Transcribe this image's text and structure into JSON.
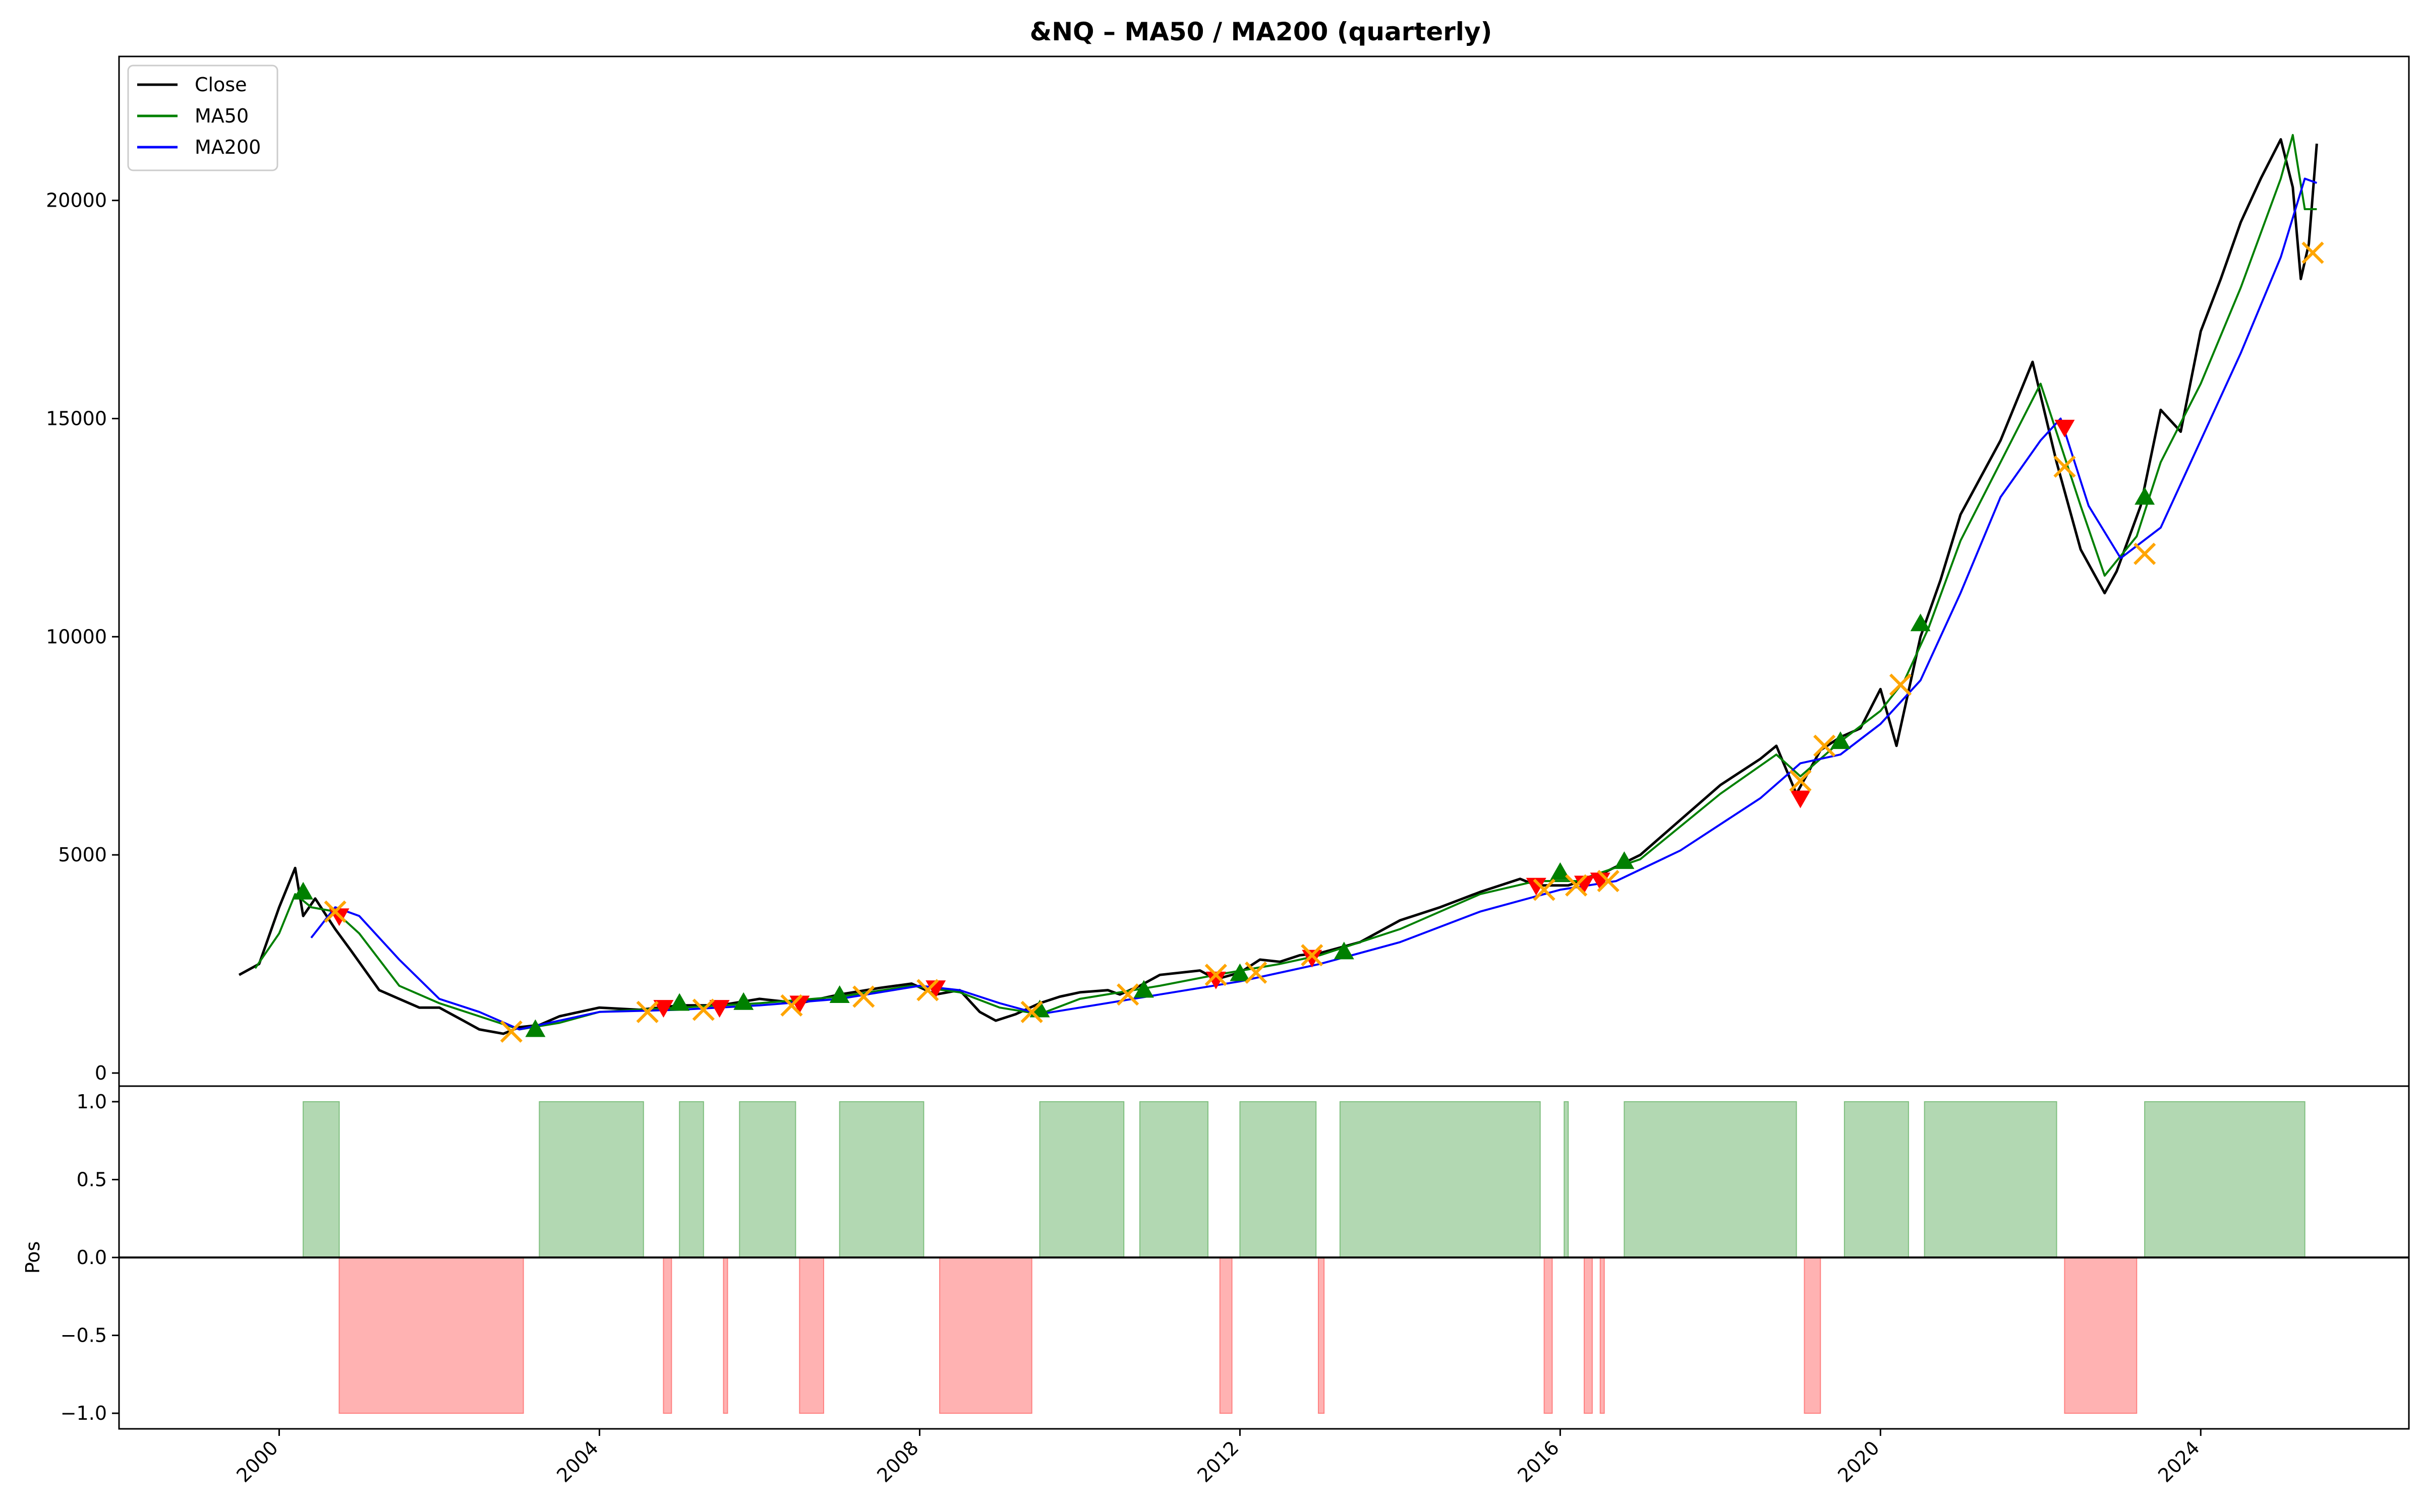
{
  "chart_data": [
    {
      "type": "line",
      "title": "&NQ – MA50 / MA200 (quarterly)",
      "xlabel": "",
      "ylabel": "",
      "xlim": [
        1998.0,
        2026.6
      ],
      "ylim": [
        -300,
        23300
      ],
      "yticks": [
        0,
        5000,
        10000,
        15000,
        20000
      ],
      "grid": false,
      "legend_position": "top-left",
      "series": [
        {
          "name": "Close",
          "color": "#000000",
          "x": [
            1999.5,
            1999.75,
            2000.0,
            2000.2,
            2000.3,
            2000.45,
            2000.7,
            2000.9,
            2001.25,
            2001.5,
            2001.75,
            2002.0,
            2002.3,
            2002.5,
            2002.8,
            2003.0,
            2003.25,
            2003.5,
            2003.75,
            2004.0,
            2004.5,
            2005.0,
            2005.5,
            2006.0,
            2006.5,
            2007.0,
            2007.5,
            2007.9,
            2008.2,
            2008.5,
            2008.75,
            2008.95,
            2009.2,
            2009.5,
            2009.75,
            2010.0,
            2010.35,
            2010.5,
            2010.75,
            2011.0,
            2011.5,
            2011.7,
            2012.0,
            2012.25,
            2012.5,
            2012.75,
            2013.0,
            2013.5,
            2014.0,
            2014.5,
            2015.0,
            2015.5,
            2015.7,
            2016.1,
            2016.5,
            2017.0,
            2017.5,
            2018.0,
            2018.5,
            2018.7,
            2018.95,
            2019.25,
            2019.5,
            2019.75,
            2020.0,
            2020.2,
            2020.5,
            2020.75,
            2021.0,
            2021.5,
            2021.9,
            2022.2,
            2022.5,
            2022.8,
            2022.95,
            2023.25,
            2023.5,
            2023.75,
            2024.0,
            2024.25,
            2024.5,
            2024.75,
            2025.0,
            2025.15,
            2025.25,
            2025.35,
            2025.45
          ],
          "y": [
            2250,
            2500,
            3800,
            4700,
            3600,
            4000,
            3300,
            2800,
            1900,
            1700,
            1500,
            1500,
            1200,
            1000,
            900,
            1050,
            1100,
            1300,
            1400,
            1500,
            1450,
            1550,
            1550,
            1700,
            1600,
            1800,
            1950,
            2050,
            1800,
            1900,
            1400,
            1200,
            1350,
            1600,
            1750,
            1850,
            1900,
            1800,
            2000,
            2250,
            2350,
            2150,
            2300,
            2600,
            2550,
            2700,
            2750,
            3000,
            3500,
            3800,
            4150,
            4450,
            4300,
            4300,
            4550,
            5000,
            5800,
            6600,
            7200,
            7500,
            6400,
            7400,
            7700,
            7900,
            8800,
            7500,
            10000,
            11300,
            12800,
            14500,
            16300,
            14000,
            12000,
            11000,
            11500,
            13000,
            15200,
            14700,
            17000,
            18200,
            19500,
            20500,
            21400,
            20300,
            18200,
            19000,
            21300
          ]
        },
        {
          "name": "MA50",
          "color": "#008000",
          "x": [
            1999.7,
            2000.0,
            2000.2,
            2000.4,
            2000.7,
            2001.0,
            2001.5,
            2002.0,
            2002.5,
            2003.0,
            2003.5,
            2004.0,
            2005.0,
            2006.0,
            2007.0,
            2007.9,
            2008.5,
            2009.0,
            2009.5,
            2010.0,
            2011.0,
            2011.7,
            2012.5,
            2013.0,
            2014.0,
            2015.0,
            2015.7,
            2016.2,
            2017.0,
            2018.0,
            2018.7,
            2019.0,
            2019.5,
            2020.0,
            2020.3,
            2020.6,
            2021.0,
            2021.5,
            2022.0,
            2022.5,
            2022.8,
            2023.2,
            2023.5,
            2024.0,
            2024.5,
            2025.0,
            2025.15,
            2025.3,
            2025.45
          ],
          "y": [
            2400,
            3200,
            4100,
            3800,
            3700,
            3200,
            2000,
            1600,
            1300,
            1000,
            1150,
            1400,
            1500,
            1600,
            1750,
            2000,
            1850,
            1500,
            1350,
            1700,
            2000,
            2250,
            2500,
            2700,
            3300,
            4100,
            4400,
            4400,
            4900,
            6400,
            7300,
            6800,
            7600,
            8300,
            9000,
            10200,
            12200,
            14000,
            15800,
            13000,
            11400,
            12300,
            14000,
            15800,
            18000,
            20500,
            21500,
            19800,
            19800
          ]
        },
        {
          "name": "MA200",
          "color": "#0000ff",
          "x": [
            2000.4,
            2000.7,
            2001.0,
            2001.5,
            2002.0,
            2002.5,
            2003.0,
            2003.5,
            2004.0,
            2005.0,
            2006.0,
            2007.0,
            2008.0,
            2008.5,
            2009.0,
            2009.5,
            2010.0,
            2011.0,
            2012.0,
            2013.0,
            2014.0,
            2015.0,
            2016.0,
            2016.7,
            2017.5,
            2018.5,
            2019.0,
            2019.5,
            2020.0,
            2020.5,
            2021.0,
            2021.5,
            2022.0,
            2022.25,
            2022.6,
            2023.0,
            2023.5,
            2024.0,
            2024.5,
            2025.0,
            2025.3,
            2025.45
          ],
          "y": [
            3100,
            3800,
            3600,
            2600,
            1700,
            1400,
            1000,
            1200,
            1400,
            1450,
            1550,
            1700,
            2000,
            1900,
            1600,
            1350,
            1500,
            1800,
            2100,
            2500,
            3000,
            3700,
            4200,
            4400,
            5100,
            6300,
            7100,
            7300,
            8000,
            9000,
            11000,
            13200,
            14500,
            15000,
            13000,
            11800,
            12500,
            14500,
            16500,
            18700,
            20500,
            20400
          ]
        }
      ],
      "markers": [
        {
          "kind": "triangle-up",
          "color": "#008000",
          "points": [
            [
              2000.3,
              4150
            ],
            [
              2003.2,
              1000
            ],
            [
              2005.0,
              1600
            ],
            [
              2005.8,
              1620
            ],
            [
              2007.0,
              1780
            ],
            [
              2009.5,
              1450
            ],
            [
              2010.8,
              1900
            ],
            [
              2012.0,
              2280
            ],
            [
              2013.3,
              2780
            ],
            [
              2016.0,
              4600
            ],
            [
              2016.8,
              4850
            ],
            [
              2019.5,
              7600
            ],
            [
              2020.5,
              10300
            ],
            [
              2023.3,
              13200
            ]
          ]
        },
        {
          "kind": "triangle-down",
          "color": "#ff0000",
          "points": [
            [
              2000.75,
              3600
            ],
            [
              2004.8,
              1500
            ],
            [
              2005.5,
              1500
            ],
            [
              2006.5,
              1600
            ],
            [
              2008.2,
              1950
            ],
            [
              2011.7,
              2150
            ],
            [
              2012.9,
              2650
            ],
            [
              2015.7,
              4300
            ],
            [
              2016.3,
              4350
            ],
            [
              2016.5,
              4420
            ],
            [
              2019.0,
              6300
            ],
            [
              2022.3,
              14800
            ]
          ]
        },
        {
          "kind": "x",
          "color": "#ffa500",
          "points": [
            [
              2000.7,
              3700
            ],
            [
              2002.9,
              950
            ],
            [
              2004.6,
              1400
            ],
            [
              2005.3,
              1450
            ],
            [
              2006.4,
              1550
            ],
            [
              2007.3,
              1750
            ],
            [
              2008.1,
              1900
            ],
            [
              2009.4,
              1400
            ],
            [
              2010.6,
              1800
            ],
            [
              2011.7,
              2250
            ],
            [
              2012.2,
              2300
            ],
            [
              2012.9,
              2700
            ],
            [
              2015.8,
              4200
            ],
            [
              2016.2,
              4300
            ],
            [
              2016.6,
              4400
            ],
            [
              2019.0,
              6700
            ],
            [
              2019.3,
              7500
            ],
            [
              2020.25,
              8900
            ],
            [
              2022.3,
              13900
            ],
            [
              2023.3,
              11900
            ],
            [
              2025.4,
              18800
            ]
          ]
        }
      ]
    },
    {
      "type": "area",
      "ylabel": "Pos",
      "xlim": [
        1998.0,
        2026.6
      ],
      "ylim": [
        -1.1,
        1.1
      ],
      "yticks": [
        -1.0,
        -0.5,
        0.0,
        0.5,
        1.0
      ],
      "xticks": [
        2000,
        2004,
        2008,
        2012,
        2016,
        2020,
        2024
      ],
      "grid": false,
      "long_color": "#b2d8b2",
      "short_color": "#ffb2b2",
      "periods": [
        {
          "start": 2000.3,
          "end": 2000.75,
          "value": 1
        },
        {
          "start": 2000.75,
          "end": 2003.05,
          "value": -1
        },
        {
          "start": 2003.25,
          "end": 2004.55,
          "value": 1
        },
        {
          "start": 2004.8,
          "end": 2004.9,
          "value": -1
        },
        {
          "start": 2005.0,
          "end": 2005.3,
          "value": 1
        },
        {
          "start": 2005.55,
          "end": 2005.6,
          "value": -1
        },
        {
          "start": 2005.75,
          "end": 2006.45,
          "value": 1
        },
        {
          "start": 2006.5,
          "end": 2006.8,
          "value": -1
        },
        {
          "start": 2007.0,
          "end": 2008.05,
          "value": 1
        },
        {
          "start": 2008.25,
          "end": 2009.4,
          "value": -1
        },
        {
          "start": 2009.5,
          "end": 2010.55,
          "value": 1
        },
        {
          "start": 2010.75,
          "end": 2011.6,
          "value": 1
        },
        {
          "start": 2011.75,
          "end": 2011.9,
          "value": -1
        },
        {
          "start": 2012.0,
          "end": 2012.95,
          "value": 1
        },
        {
          "start": 2012.98,
          "end": 2013.05,
          "value": -1
        },
        {
          "start": 2013.25,
          "end": 2015.75,
          "value": 1
        },
        {
          "start": 2015.8,
          "end": 2015.9,
          "value": -1
        },
        {
          "start": 2016.05,
          "end": 2016.1,
          "value": 1
        },
        {
          "start": 2016.3,
          "end": 2016.4,
          "value": -1
        },
        {
          "start": 2016.5,
          "end": 2016.55,
          "value": -1
        },
        {
          "start": 2016.8,
          "end": 2018.95,
          "value": 1
        },
        {
          "start": 2019.05,
          "end": 2019.25,
          "value": -1
        },
        {
          "start": 2019.55,
          "end": 2020.35,
          "value": 1
        },
        {
          "start": 2020.55,
          "end": 2022.2,
          "value": 1
        },
        {
          "start": 2022.3,
          "end": 2023.2,
          "value": -1
        },
        {
          "start": 2023.3,
          "end": 2025.3,
          "value": 1
        }
      ]
    }
  ]
}
